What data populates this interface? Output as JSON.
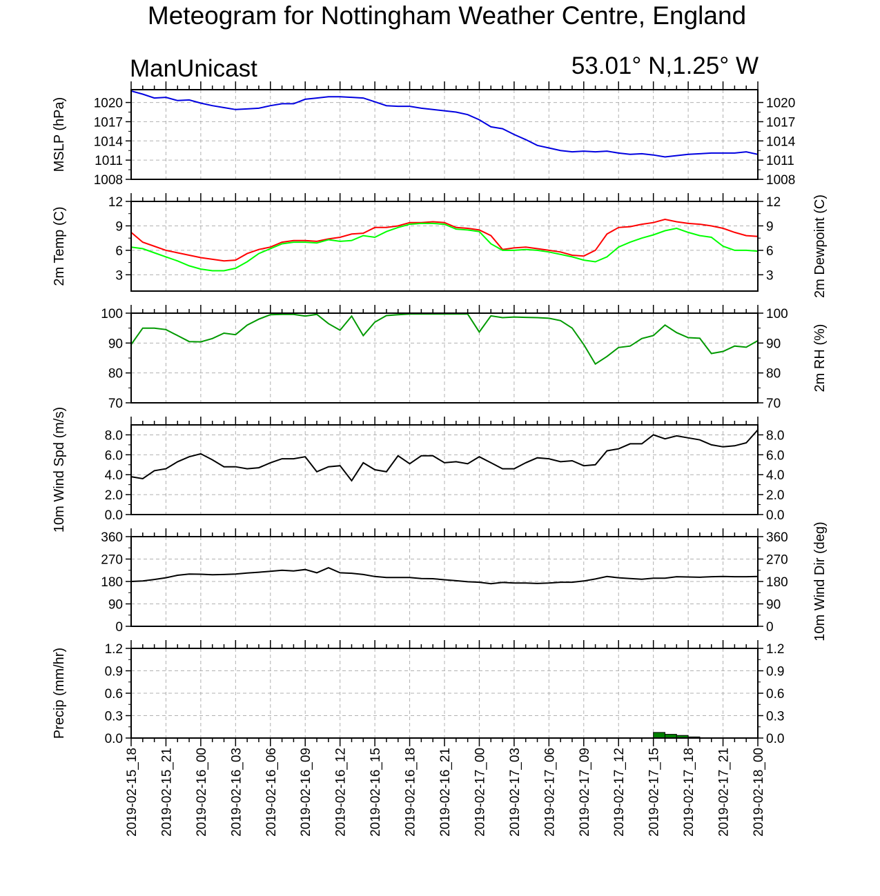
{
  "header": {
    "title": "Meteogram for Nottingham Weather Centre, England",
    "left_label": "ManUnicast",
    "right_label": "53.01° N,1.25° W"
  },
  "chart_data": {
    "type": "line",
    "x": [
      "2019-02-15_18",
      "2019-02-15_21",
      "2019-02-16_00",
      "2019-02-16_03",
      "2019-02-16_06",
      "2019-02-16_09",
      "2019-02-16_12",
      "2019-02-16_15",
      "2019-02-16_18",
      "2019-02-16_21",
      "2019-02-17_00",
      "2019-02-17_03",
      "2019-02-17_06",
      "2019-02-17_09",
      "2019-02-17_12",
      "2019-02-17_15",
      "2019-02-17_18",
      "2019-02-17_21",
      "2019-02-18_00"
    ],
    "x_hours": [
      0,
      1,
      2,
      3,
      4,
      5,
      6,
      7,
      8,
      9,
      10,
      11,
      12,
      13,
      14,
      15,
      16,
      17,
      18,
      19,
      20,
      21,
      22,
      23,
      24,
      25,
      26,
      27,
      28,
      29,
      30,
      31,
      32,
      33,
      34,
      35,
      36,
      37,
      38,
      39,
      40,
      41,
      42,
      43,
      44,
      45,
      46,
      47,
      48,
      49,
      50,
      51,
      52,
      53,
      54
    ],
    "panels": [
      {
        "ylabel": "MSLP (hPa)",
        "ylabel_right": "",
        "ylim": [
          1008,
          1022
        ],
        "yticks": [
          "1020",
          "1017",
          "1014",
          "1011",
          "1008"
        ],
        "ytick_values": [
          1020,
          1017,
          1014,
          1011,
          1008
        ],
        "series": [
          {
            "color": "#0000e0",
            "values": [
              1021.8,
              1021.3,
              1020.7,
              1020.8,
              1020.3,
              1020.4,
              1019.9,
              1019.5,
              1019.2,
              1018.9,
              1019.0,
              1019.1,
              1019.5,
              1019.8,
              1019.8,
              1020.5,
              1020.7,
              1020.9,
              1020.9,
              1020.8,
              1020.7,
              1020.1,
              1019.5,
              1019.4,
              1019.4,
              1019.1,
              1018.9,
              1018.7,
              1018.5,
              1018.1,
              1017.3,
              1016.2,
              1015.9,
              1015.0,
              1014.2,
              1013.3,
              1012.9,
              1012.5,
              1012.3,
              1012.4,
              1012.3,
              1012.4,
              1012.1,
              1011.9,
              1012.0,
              1011.8,
              1011.5,
              1011.7,
              1011.9,
              1012.0,
              1012.1,
              1012.1,
              1012.1,
              1012.3,
              1011.9
            ]
          }
        ]
      },
      {
        "ylabel": "2m Temp (C)",
        "ylabel_right": "2m Dewpoint (C)",
        "ylim": [
          1,
          12
        ],
        "yticks": [
          "12",
          "9",
          "6",
          "3"
        ],
        "ytick_values": [
          12,
          9,
          6,
          3
        ],
        "series": [
          {
            "color": "#ff0000",
            "values": [
              8.2,
              7.0,
              6.5,
              6.0,
              5.7,
              5.4,
              5.1,
              4.9,
              4.7,
              4.8,
              5.6,
              6.1,
              6.4,
              7.0,
              7.2,
              7.2,
              7.1,
              7.4,
              7.6,
              8.0,
              8.1,
              8.8,
              8.8,
              9.0,
              9.4,
              9.4,
              9.5,
              9.4,
              8.8,
              8.7,
              8.5,
              7.8,
              6.1,
              6.3,
              6.4,
              6.2,
              6.0,
              5.8,
              5.4,
              5.3,
              6.0,
              8.0,
              8.8,
              8.9,
              9.2,
              9.4,
              9.8,
              9.5,
              9.3,
              9.2,
              9.0,
              8.7,
              8.2,
              7.8,
              7.7
            ]
          },
          {
            "color": "#00ff00",
            "values": [
              6.4,
              6.2,
              5.7,
              5.2,
              4.7,
              4.1,
              3.7,
              3.5,
              3.5,
              3.8,
              4.6,
              5.6,
              6.2,
              6.8,
              7.0,
              7.0,
              6.9,
              7.3,
              7.1,
              7.2,
              7.8,
              7.6,
              8.3,
              8.8,
              9.2,
              9.3,
              9.3,
              9.2,
              8.6,
              8.5,
              8.3,
              6.8,
              6.0,
              6.0,
              6.1,
              6.0,
              5.8,
              5.5,
              5.2,
              4.8,
              4.6,
              5.2,
              6.4,
              7.0,
              7.5,
              7.9,
              8.4,
              8.7,
              8.2,
              7.8,
              7.6,
              6.5,
              6.0,
              6.0,
              5.9
            ]
          }
        ]
      },
      {
        "ylabel": "",
        "ylabel_right": "2m RH (%)",
        "ylim": [
          70,
          100
        ],
        "yticks": [
          "100",
          "90",
          "80",
          "70"
        ],
        "ytick_values": [
          100,
          90,
          80,
          70
        ],
        "series": [
          {
            "color": "#009900",
            "values": [
              89.5,
              95.0,
              95.0,
              94.5,
              92.5,
              90.5,
              90.4,
              91.5,
              93.3,
              92.8,
              96.0,
              98.0,
              99.5,
              99.6,
              99.6,
              99.0,
              99.6,
              96.5,
              94.3,
              99.0,
              92.5,
              97.0,
              99.2,
              99.5,
              99.7,
              99.7,
              99.7,
              99.7,
              99.7,
              99.7,
              93.7,
              99.1,
              98.5,
              98.7,
              98.6,
              98.5,
              98.3,
              97.5,
              95.0,
              89.5,
              83.0,
              85.5,
              88.5,
              89.0,
              91.5,
              92.5,
              96.0,
              93.5,
              91.8,
              91.6,
              86.5,
              87.2,
              89.0,
              88.6,
              90.8
            ]
          }
        ]
      },
      {
        "ylabel": "10m Wind Spd (m/s)",
        "ylabel_right": "",
        "ylim": [
          0,
          9
        ],
        "yticks": [
          "8.0",
          "6.0",
          "4.0",
          "2.0",
          "0.0"
        ],
        "ytick_values": [
          8,
          6,
          4,
          2,
          0
        ],
        "series": [
          {
            "color": "#000000",
            "values": [
              3.8,
              3.6,
              4.4,
              4.6,
              5.3,
              5.8,
              6.1,
              5.5,
              4.8,
              4.8,
              4.6,
              4.7,
              5.2,
              5.6,
              5.6,
              5.8,
              4.3,
              4.8,
              4.9,
              3.4,
              5.2,
              4.5,
              4.3,
              5.9,
              5.1,
              5.9,
              5.9,
              5.2,
              5.3,
              5.1,
              5.8,
              5.2,
              4.6,
              4.6,
              5.2,
              5.7,
              5.6,
              5.3,
              5.4,
              4.9,
              5.0,
              6.4,
              6.6,
              7.1,
              7.1,
              8.0,
              7.6,
              7.9,
              7.7,
              7.5,
              7.0,
              6.8,
              6.9,
              7.2,
              8.5
            ]
          }
        ]
      },
      {
        "ylabel": "",
        "ylabel_right": "10m Wind Dir (deg)",
        "ylim": [
          0,
          360
        ],
        "yticks": [
          "360",
          "270",
          "180",
          "90",
          "0"
        ],
        "ytick_values": [
          360,
          270,
          180,
          90,
          0
        ],
        "series": [
          {
            "color": "#000000",
            "values": [
              180,
              182,
              188,
              195,
              205,
              210,
              209,
              207,
              208,
              210,
              214,
              217,
              221,
              225,
              222,
              228,
              215,
              235,
              215,
              213,
              208,
              200,
              196,
              196,
              196,
              192,
              191,
              187,
              183,
              179,
              177,
              171,
              176,
              174,
              174,
              172,
              174,
              177,
              177,
              182,
              190,
              200,
              195,
              192,
              189,
              193,
              193,
              199,
              198,
              197,
              199,
              200,
              199,
              199,
              200
            ]
          }
        ]
      },
      {
        "ylabel": "Precip (mm/hr)",
        "ylabel_right": "",
        "ylim": [
          0,
          1.2
        ],
        "yticks": [
          "1.2",
          "0.9",
          "0.6",
          "0.3",
          "0.0"
        ],
        "ytick_values": [
          1.2,
          0.9,
          0.6,
          0.3,
          0.0
        ],
        "series": [
          {
            "type": "bar",
            "color": "#008000",
            "values": [
              0,
              0,
              0,
              0,
              0,
              0,
              0,
              0,
              0,
              0,
              0,
              0,
              0,
              0,
              0,
              0.005,
              0,
              0,
              0,
              0,
              0,
              0,
              0,
              0,
              0.005,
              0,
              0,
              0,
              0,
              0,
              0,
              0,
              0,
              0,
              0,
              0,
              0,
              0,
              0,
              0,
              0,
              0,
              0,
              0,
              0,
              0.075,
              0.05,
              0.035,
              0.015,
              0,
              0,
              0,
              0,
              0,
              0
            ]
          }
        ]
      }
    ]
  }
}
